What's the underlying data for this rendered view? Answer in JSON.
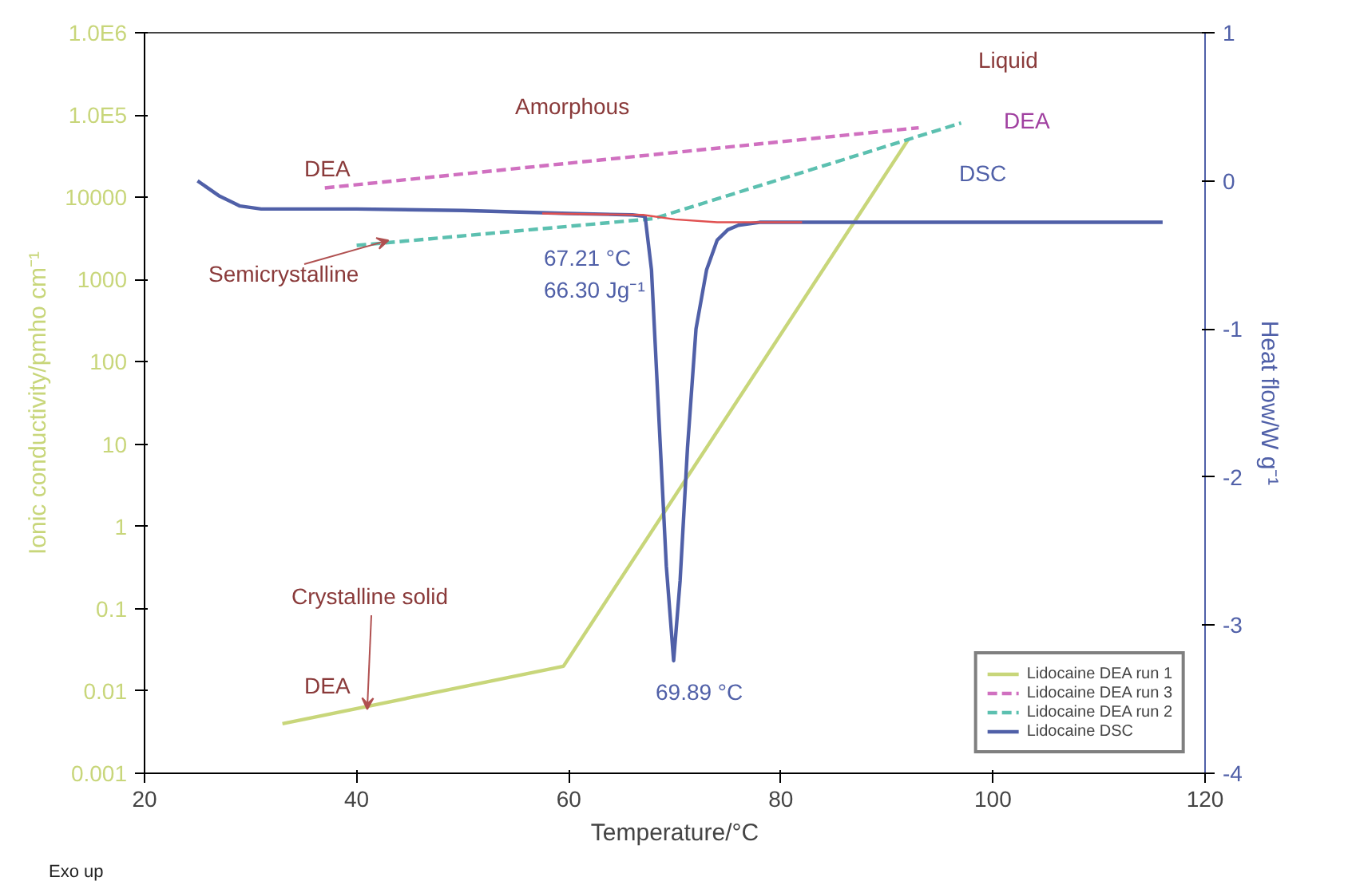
{
  "chart_data": {
    "type": "line",
    "xlabel": "Temperature/°C",
    "ylabel": "Ionic conductivity/pmho cm⁻¹",
    "y2label": "Heat flow/W g⁻¹",
    "xlim": [
      20,
      120
    ],
    "xticks": [
      20,
      40,
      60,
      80,
      100,
      120
    ],
    "ylim": [
      0.001,
      1000000
    ],
    "yticks": [
      0.001,
      0.01,
      0.1,
      1,
      10,
      100,
      1000,
      10000,
      {
        "value": 100000,
        "label": "1.0E5"
      },
      {
        "value": 1000000,
        "label": "1.0E6"
      }
    ],
    "y2lim": [
      -4,
      1
    ],
    "y2ticks": [
      -4,
      -3,
      -2,
      -1,
      0,
      1
    ],
    "log": "y",
    "grid": false,
    "legend": "bottom right",
    "marker": "none",
    "series": [
      {
        "name": "Lidocaine DEA run 1",
        "color": "#c8d67a",
        "line_style": "solid",
        "x": [
          33,
          59.5,
          92
        ],
        "values": [
          0.004,
          0.02,
          50000
        ]
      },
      {
        "name": "Lidocaine DEA run 3",
        "color": "#d070c0",
        "line_style": "dashed",
        "x": [
          37,
          93
        ],
        "values": [
          13000,
          70000
        ]
      },
      {
        "name": "Lidocaine DEA run 2",
        "color": "#5cc0b0",
        "line_style": "dashed",
        "x": [
          40,
          68,
          97
        ],
        "values": [
          2600,
          5500,
          80000
        ]
      },
      {
        "name": "Lidocaine DSC",
        "color": "#5060a8",
        "line_style": "solid",
        "axis": "y2",
        "x": [
          25,
          27,
          29,
          31,
          40,
          50,
          60,
          66,
          67.2,
          67.8,
          68.5,
          69.2,
          69.89,
          70.5,
          71.2,
          72,
          73,
          74,
          75,
          76,
          78,
          85,
          100,
          116
        ],
        "values": [
          0.0,
          -0.1,
          -0.17,
          -0.19,
          -0.19,
          -0.2,
          -0.22,
          -0.23,
          -0.24,
          -0.6,
          -1.6,
          -2.6,
          -3.24,
          -2.7,
          -1.8,
          -1.0,
          -0.6,
          -0.4,
          -0.33,
          -0.3,
          -0.28,
          -0.28,
          -0.28,
          -0.28
        ]
      },
      {
        "color": "#e05050",
        "line_style": "solid",
        "axis": "y2",
        "x": [
          57.5,
          67,
          70,
          74,
          82
        ],
        "values": [
          -0.22,
          -0.23,
          -0.26,
          -0.28,
          -0.28
        ]
      }
    ],
    "annotations": [
      "DEA",
      "Amorphous",
      "Liquid",
      "DEA",
      "DSC",
      {
        "text": "Semicrystalline",
        "x": 43,
        "y": 3000
      },
      "67.21 °C",
      "66.30 Jg⁻¹",
      "69.89 °C",
      {
        "text": "Crystalline solid",
        "x": 41,
        "y": 0.006
      },
      "DEA",
      "Exo up"
    ]
  }
}
